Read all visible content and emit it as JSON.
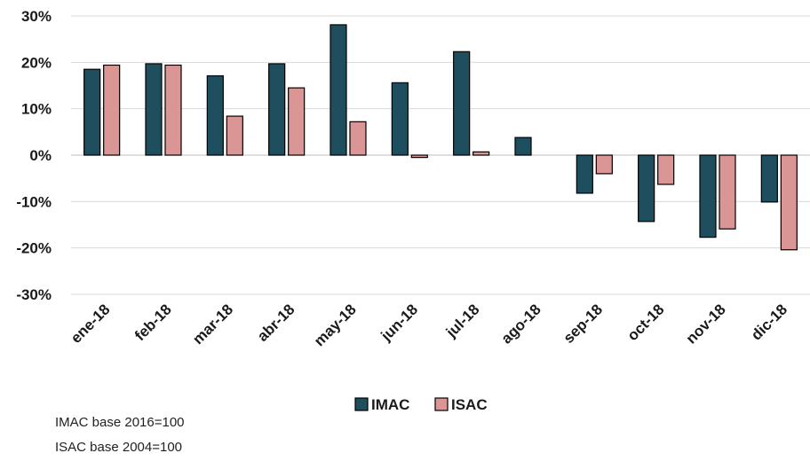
{
  "chart_data": {
    "type": "bar",
    "categories": [
      "ene-18",
      "feb-18",
      "mar-18",
      "abr-18",
      "may-18",
      "jun-18",
      "jul-18",
      "ago-18",
      "sep-18",
      "oct-18",
      "nov-18",
      "dic-18"
    ],
    "series": [
      {
        "name": "IMAC",
        "color": "#1f4e5f",
        "values": [
          18.5,
          19.7,
          17.1,
          19.7,
          28.1,
          15.6,
          22.3,
          3.8,
          -8.2,
          -14.3,
          -17.7,
          -10.1
        ]
      },
      {
        "name": "ISAC",
        "color": "#d99694",
        "values": [
          19.4,
          19.4,
          8.4,
          14.5,
          7.2,
          -0.5,
          0.7,
          null,
          -4.0,
          -6.3,
          -15.9,
          -20.4
        ]
      }
    ],
    "ylim": [
      -30,
      30
    ],
    "yticks": [
      30,
      20,
      10,
      0,
      -10,
      -20,
      -30
    ],
    "ytick_labels": [
      "30%",
      "20%",
      "10%",
      "0%",
      "-10%",
      "-20%",
      "-30%"
    ],
    "grid": true,
    "legend": "bottom-center",
    "notes": [
      "IMAC base 2016=100",
      "ISAC base 2004=100"
    ]
  }
}
